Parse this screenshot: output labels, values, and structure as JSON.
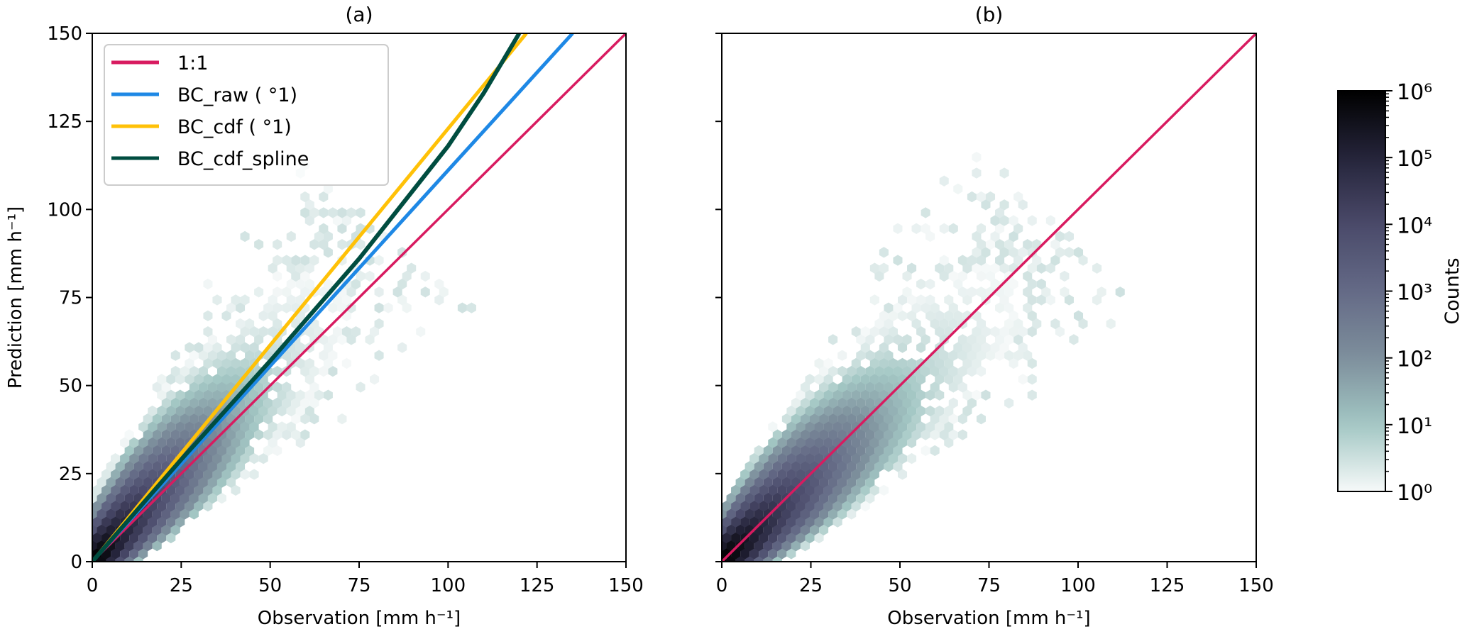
{
  "chart_data": [
    {
      "type": "hexbin",
      "title": "(a)",
      "xlabel": "Observation [mm h⁻¹]",
      "ylabel": "Prediction [mm h⁻¹]",
      "xlim": [
        0,
        150
      ],
      "ylim": [
        0,
        150
      ],
      "xticks": [
        "0",
        "25",
        "50",
        "75",
        "100",
        "125",
        "150"
      ],
      "yticks": [
        "0",
        "25",
        "50",
        "75",
        "100",
        "125",
        "150"
      ],
      "density_slope": 1.15,
      "legend_position": "upper-left",
      "series": [
        {
          "name": "1:1",
          "color": "#d81b60",
          "x": [
            0,
            150
          ],
          "y": [
            0,
            150
          ]
        },
        {
          "name": "BC_raw ( °1)",
          "color": "#1e88e5",
          "x": [
            0,
            135
          ],
          "y": [
            0,
            150
          ]
        },
        {
          "name": "BC_cdf ( °1)",
          "color": "#ffc107",
          "x": [
            0,
            122
          ],
          "y": [
            0,
            150
          ]
        },
        {
          "name": "BC_cdf_spline",
          "color": "#004d40",
          "x": [
            0,
            25,
            50,
            75,
            100,
            110,
            120
          ],
          "y": [
            0,
            29,
            57,
            86,
            118,
            133,
            150
          ]
        }
      ]
    },
    {
      "type": "hexbin",
      "title": "(b)",
      "xlabel": "Observation [mm h⁻¹]",
      "ylabel": "",
      "xlim": [
        0,
        150
      ],
      "ylim": [
        0,
        150
      ],
      "xticks": [
        "0",
        "25",
        "50",
        "75",
        "100",
        "125",
        "150"
      ],
      "density_slope": 1.0,
      "series": [
        {
          "name": "1:1",
          "color": "#d81b60",
          "x": [
            0,
            150
          ],
          "y": [
            0,
            150
          ]
        }
      ]
    }
  ],
  "colorbar": {
    "label": "Counts",
    "ticks": [
      "10⁰",
      "10¹",
      "10²",
      "10³",
      "10⁴",
      "10⁵",
      "10⁶"
    ],
    "range": [
      1,
      1000000
    ],
    "colors": [
      "#f6f9f9",
      "#a3c7c4",
      "#7d8f9c",
      "#646a86",
      "#4a4a6a",
      "#25243a",
      "#000000"
    ]
  }
}
